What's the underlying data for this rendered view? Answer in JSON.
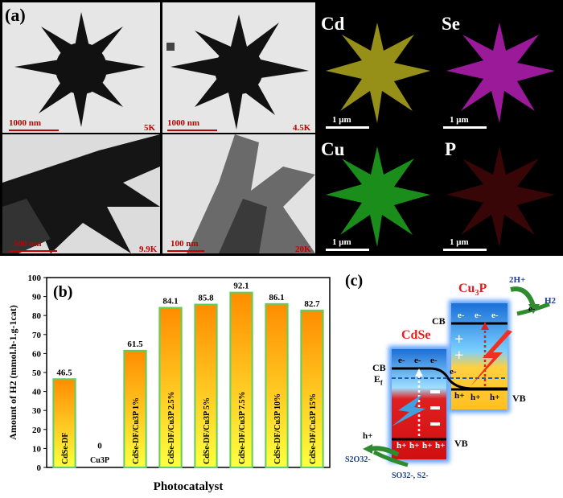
{
  "panel_a": {
    "label": "(a)",
    "tem": [
      {
        "scale": "1000 nm",
        "mag": "5K"
      },
      {
        "scale": "1000 nm",
        "mag": "4.5K"
      },
      {
        "scale": "500 nm",
        "mag": "9.9K"
      },
      {
        "scale": "100 nm",
        "mag": "20K"
      }
    ],
    "maps": [
      {
        "element": "Cd",
        "scale": "1 μm",
        "color": "#c8c020"
      },
      {
        "element": "Se",
        "scale": "1 μm",
        "color": "#c020c0"
      },
      {
        "element": "Cu",
        "scale": "1 μm",
        "color": "#20b020"
      },
      {
        "element": "P",
        "scale": "1 μm",
        "color": "#a01010"
      }
    ]
  },
  "chart_data": {
    "type": "bar",
    "label": "(b)",
    "categories": [
      "CdSe-DF",
      "Cu3P",
      "CdSe-DF/Cu3P 1%",
      "CdSe-DF/Cu3P 2.5%",
      "CdSe-DF/Cu3P 5%",
      "CdSe-DF/Cu3P 7.5%",
      "CdSe-DF/Cu3P 10%",
      "CdSe-DF/Cu3P 15%"
    ],
    "values": [
      46.5,
      0,
      61.5,
      84.1,
      85.8,
      92.1,
      86.1,
      82.7
    ],
    "value_labels": [
      "46.5",
      "0",
      "61.5",
      "84.1",
      "85.8",
      "92.1",
      "86.1",
      "82.7"
    ],
    "xlabel": "Photocatalyst",
    "ylabel": "Amount of H2 (mmol.h-1.g-1cat)",
    "ylim": [
      0,
      100
    ],
    "yticks": [
      "0",
      "10",
      "20",
      "30",
      "40",
      "50",
      "60",
      "70",
      "80",
      "90",
      "100"
    ],
    "bar_gradient": [
      "#ffff40",
      "#ff8c00"
    ],
    "bar_border": "#5cd05c"
  },
  "panel_c": {
    "label": "(c)",
    "cdse_label": "CdSe",
    "cu3p_label": "Cu3P",
    "cb": "CB",
    "vb": "VB",
    "ef": "Ef",
    "electron": "e-",
    "hole": "h+",
    "h2_reactant": "2H+",
    "h2_product": "H2",
    "sacrificial_1": "SO32-, S2-",
    "sacrificial_2": "S2O32-"
  }
}
